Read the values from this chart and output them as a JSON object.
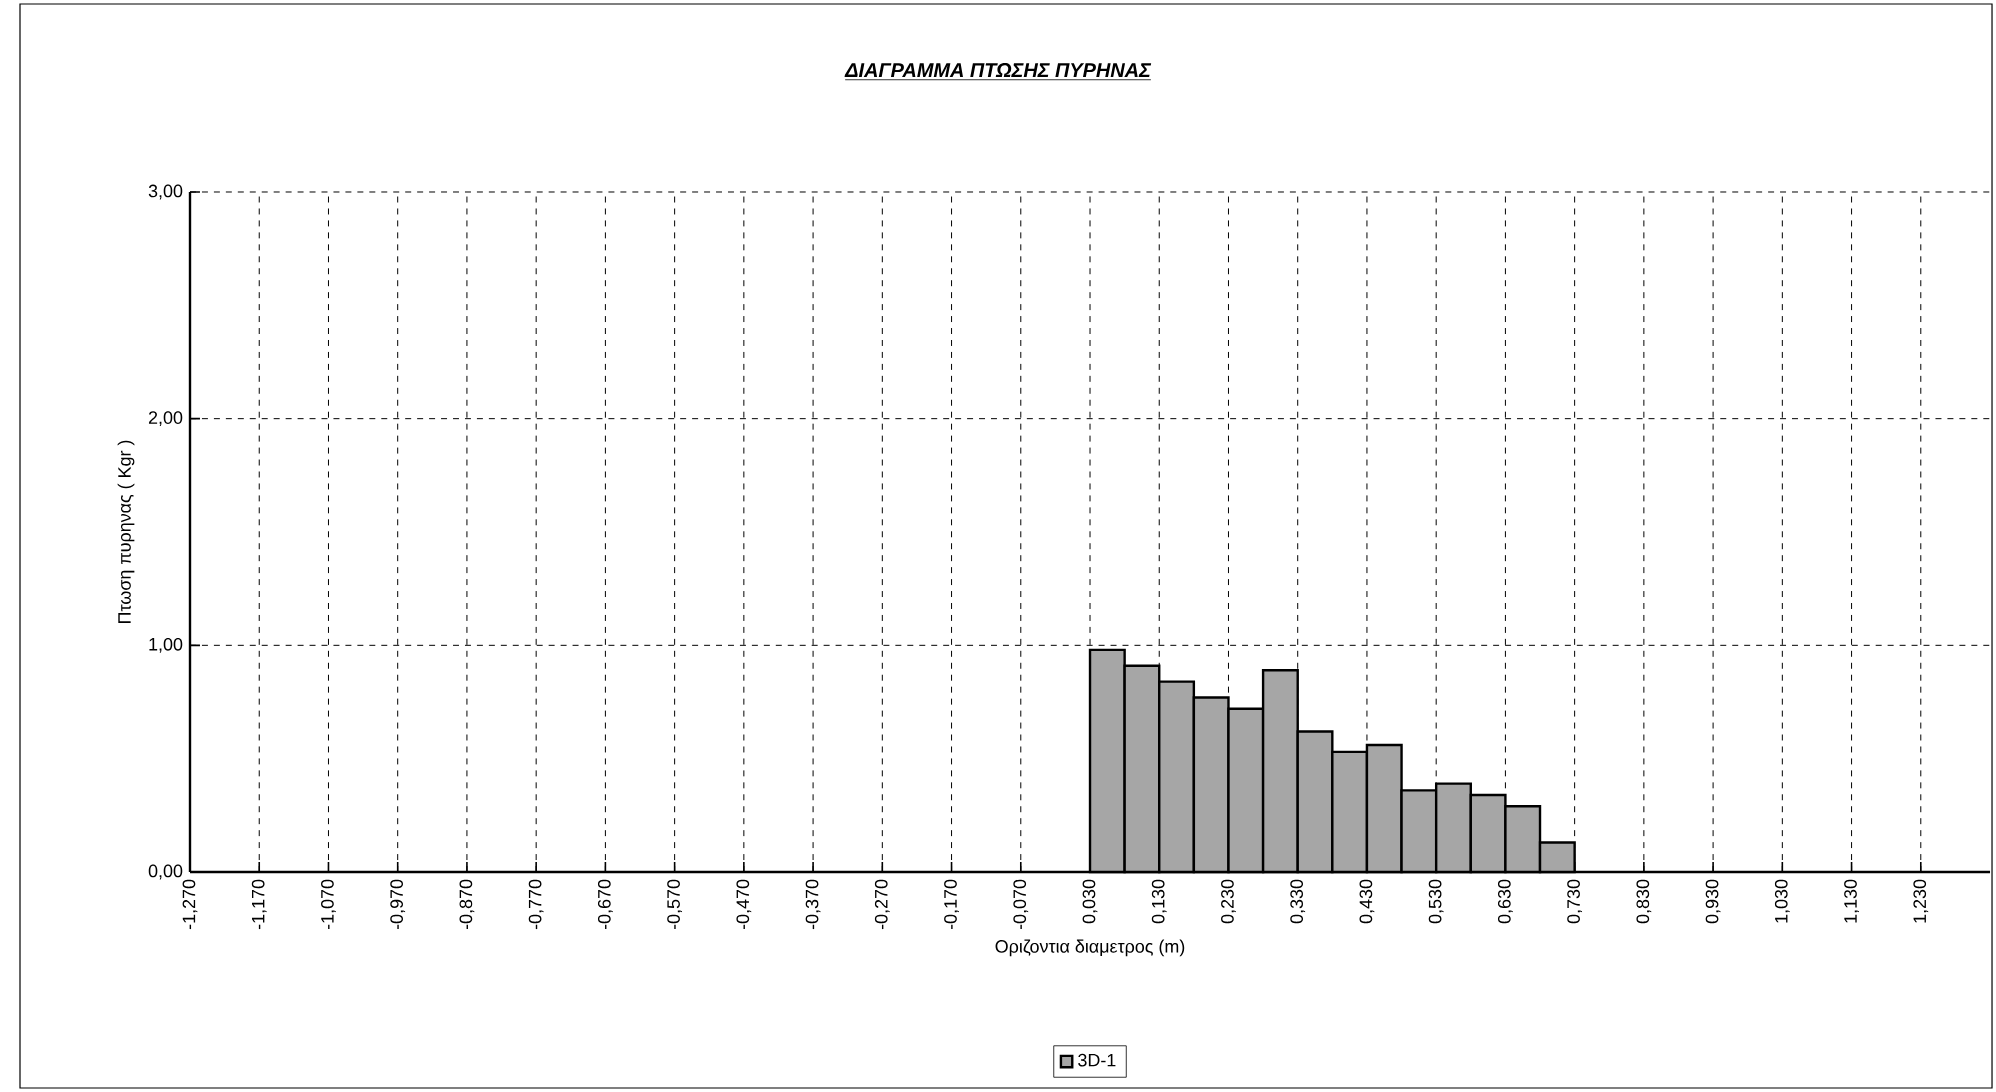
{
  "chart_data": {
    "type": "histogram",
    "title": "ΔΙΑΓΡΑΜΜΑ ΠΤΩΣΗΣ ΠΥΡΗΝΑΣ",
    "xlabel": "Οριζοντια διαμετρος (m)",
    "ylabel": "Πτωση πυρηνας ( Kgr )",
    "bins": [
      0.03,
      0.08,
      0.13,
      0.18,
      0.23,
      0.28,
      0.33,
      0.38,
      0.43,
      0.48,
      0.53,
      0.58,
      0.63,
      0.68,
      0.73
    ],
    "series": [
      {
        "name": "3D-1",
        "color": "#a6a6a6",
        "values": [
          0.98,
          0.91,
          0.84,
          0.77,
          0.72,
          0.89,
          0.62,
          0.53,
          0.56,
          0.36,
          0.39,
          0.34,
          0.29,
          0.13
        ]
      }
    ],
    "xlim": [
      -1.27,
      1.33
    ],
    "ylim": [
      0,
      3
    ],
    "xticks": [
      {
        "value": -1.27,
        "label": "-1,270"
      },
      {
        "value": -1.17,
        "label": "-1,170"
      },
      {
        "value": -1.07,
        "label": "-1,070"
      },
      {
        "value": -0.97,
        "label": "-0,970"
      },
      {
        "value": -0.87,
        "label": "-0,870"
      },
      {
        "value": -0.77,
        "label": "-0,770"
      },
      {
        "value": -0.67,
        "label": "-0,670"
      },
      {
        "value": -0.57,
        "label": "-0,570"
      },
      {
        "value": -0.47,
        "label": "-0,470"
      },
      {
        "value": -0.37,
        "label": "-0,370"
      },
      {
        "value": -0.27,
        "label": "-0,270"
      },
      {
        "value": -0.17,
        "label": "-0,170"
      },
      {
        "value": -0.07,
        "label": "-0,070"
      },
      {
        "value": 0.03,
        "label": "0,030"
      },
      {
        "value": 0.13,
        "label": "0,130"
      },
      {
        "value": 0.23,
        "label": "0,230"
      },
      {
        "value": 0.33,
        "label": "0,330"
      },
      {
        "value": 0.43,
        "label": "0,430"
      },
      {
        "value": 0.53,
        "label": "0,530"
      },
      {
        "value": 0.63,
        "label": "0,630"
      },
      {
        "value": 0.73,
        "label": "0,730"
      },
      {
        "value": 0.83,
        "label": "0,830"
      },
      {
        "value": 0.93,
        "label": "0,930"
      },
      {
        "value": 1.03,
        "label": "1,030"
      },
      {
        "value": 1.13,
        "label": "1,130"
      },
      {
        "value": 1.23,
        "label": "1,230"
      }
    ],
    "yticks": [
      {
        "value": 0,
        "label": "0,00"
      },
      {
        "value": 1,
        "label": "1,00"
      },
      {
        "value": 2,
        "label": "2,00"
      },
      {
        "value": 3,
        "label": "3,00"
      }
    ],
    "grid": true,
    "legend": "bottom"
  }
}
